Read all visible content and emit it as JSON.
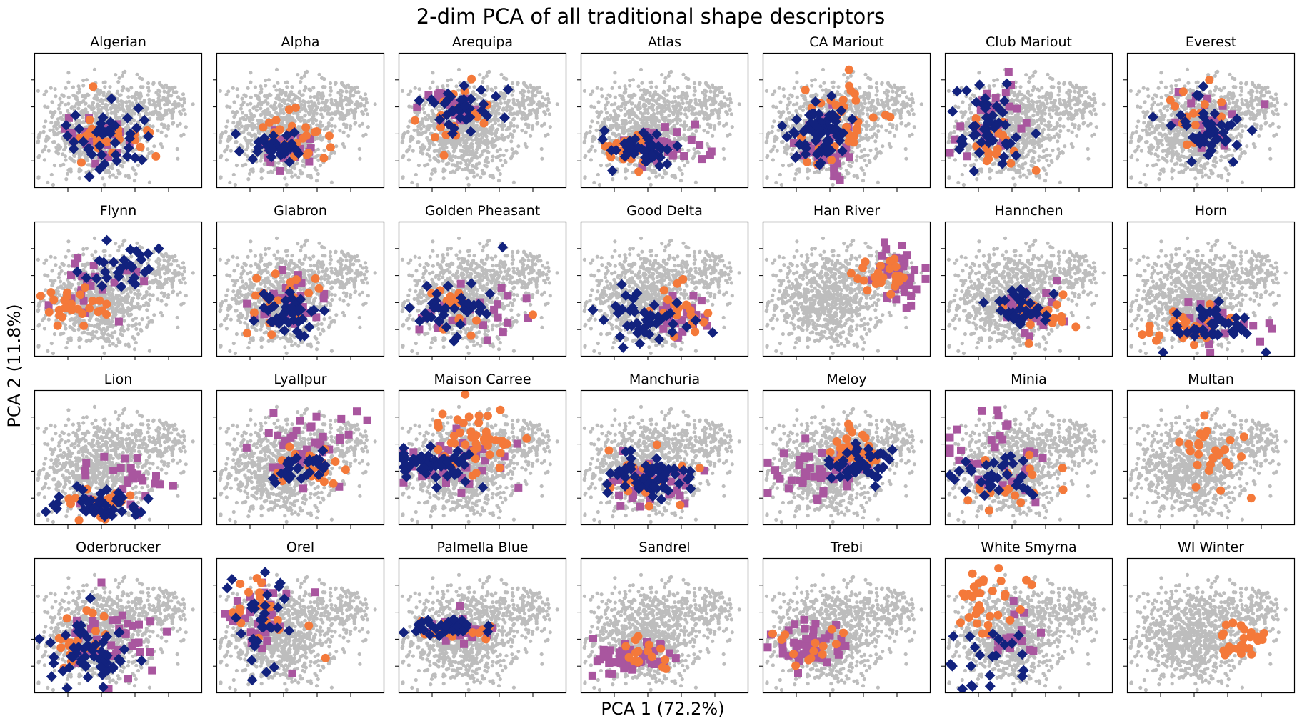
{
  "figure": {
    "title": "2-dim PCA of all traditional shape descriptors",
    "xlabel": "PCA 1 (72.2%)",
    "ylabel": "PCA 2 (11.8%)"
  },
  "colors": {
    "background_points": "#bdbdbd",
    "circle_series": "#f4793a",
    "square_series": "#a9569f",
    "diamond_series": "#12227e",
    "axes": "#000000"
  },
  "axes_shared": {
    "xlim": [
      0,
      100
    ],
    "ylim": [
      0,
      100
    ],
    "ticks": "unlabeled",
    "grid": false,
    "legend": false
  },
  "chart_data": [
    {
      "type": "scatter",
      "title": "Algerian",
      "clusters": [
        {
          "marker": "circle",
          "cx": 45,
          "cy": 38,
          "sx": 13,
          "sy": 8,
          "n": 22,
          "outliers": [
            [
              35,
              75
            ]
          ]
        },
        {
          "marker": "square",
          "cx": 36,
          "cy": 35,
          "sx": 9,
          "sy": 9,
          "n": 24
        },
        {
          "marker": "diamond",
          "cx": 42,
          "cy": 33,
          "sx": 12,
          "sy": 11,
          "n": 40,
          "outliers": [
            [
              46,
              66
            ],
            [
              62,
              59
            ]
          ]
        }
      ]
    },
    {
      "type": "scatter",
      "title": "Alpha",
      "clusters": [
        {
          "marker": "circle",
          "cx": 45,
          "cy": 38,
          "sx": 12,
          "sy": 10,
          "n": 26,
          "outliers": [
            [
              68,
              30
            ],
            [
              64,
              22
            ]
          ]
        },
        {
          "marker": "square",
          "cx": 42,
          "cy": 31,
          "sx": 11,
          "sy": 7,
          "n": 24
        },
        {
          "marker": "diamond",
          "cx": 36,
          "cy": 29,
          "sx": 9,
          "sy": 6,
          "n": 32
        }
      ]
    },
    {
      "type": "scatter",
      "title": "Arequipa",
      "clusters": [
        {
          "marker": "circle",
          "cx": 35,
          "cy": 54,
          "sx": 12,
          "sy": 12,
          "n": 16,
          "outliers": [
            [
              27,
              24
            ]
          ]
        },
        {
          "marker": "square",
          "cx": 30,
          "cy": 60,
          "sx": 8,
          "sy": 9,
          "n": 20
        },
        {
          "marker": "diamond",
          "cx": 38,
          "cy": 56,
          "sx": 11,
          "sy": 11,
          "n": 38
        }
      ]
    },
    {
      "type": "scatter",
      "title": "Atlas",
      "clusters": [
        {
          "marker": "circle",
          "cx": 26,
          "cy": 29,
          "sx": 8,
          "sy": 6,
          "n": 22
        },
        {
          "marker": "square",
          "cx": 47,
          "cy": 32,
          "sx": 13,
          "sy": 8,
          "n": 30,
          "outliers": [
            [
              78,
              27
            ]
          ]
        },
        {
          "marker": "diamond",
          "cx": 36,
          "cy": 29,
          "sx": 11,
          "sy": 6,
          "n": 50
        }
      ]
    },
    {
      "type": "scatter",
      "title": "CA Mariout",
      "clusters": [
        {
          "marker": "circle",
          "cx": 48,
          "cy": 48,
          "sx": 12,
          "sy": 17,
          "n": 36
        },
        {
          "marker": "square",
          "cx": 35,
          "cy": 30,
          "sx": 10,
          "sy": 12,
          "n": 38,
          "outliers": [
            [
              46,
              6
            ]
          ]
        },
        {
          "marker": "diamond",
          "cx": 35,
          "cy": 42,
          "sx": 8,
          "sy": 10,
          "n": 70
        }
      ]
    },
    {
      "type": "scatter",
      "title": "Club Mariout",
      "clusters": [
        {
          "marker": "circle",
          "cx": 30,
          "cy": 35,
          "sx": 10,
          "sy": 12,
          "n": 20
        },
        {
          "marker": "square",
          "cx": 28,
          "cy": 50,
          "sx": 14,
          "sy": 14,
          "n": 30,
          "outliers": [
            [
              38,
              86
            ]
          ]
        },
        {
          "marker": "diamond",
          "cx": 26,
          "cy": 43,
          "sx": 11,
          "sy": 14,
          "n": 48
        }
      ]
    },
    {
      "type": "scatter",
      "title": "Everest",
      "clusters": [
        {
          "marker": "circle",
          "cx": 40,
          "cy": 52,
          "sx": 10,
          "sy": 10,
          "n": 14
        },
        {
          "marker": "square",
          "cx": 48,
          "cy": 50,
          "sx": 10,
          "sy": 10,
          "n": 20,
          "outliers": [
            [
              82,
              62
            ]
          ]
        },
        {
          "marker": "diamond",
          "cx": 48,
          "cy": 40,
          "sx": 10,
          "sy": 12,
          "n": 40
        }
      ]
    },
    {
      "type": "scatter",
      "title": "Flynn",
      "clusters": [
        {
          "marker": "circle",
          "cx": 22,
          "cy": 38,
          "sx": 11,
          "sy": 7,
          "n": 28
        },
        {
          "marker": "square",
          "cx": 36,
          "cy": 50,
          "sx": 12,
          "sy": 10,
          "n": 24
        },
        {
          "marker": "diamond",
          "cx": 52,
          "cy": 65,
          "sx": 12,
          "sy": 9,
          "n": 30
        }
      ]
    },
    {
      "type": "scatter",
      "title": "Glabron",
      "clusters": [
        {
          "marker": "circle",
          "cx": 42,
          "cy": 40,
          "sx": 11,
          "sy": 10,
          "n": 20
        },
        {
          "marker": "square",
          "cx": 46,
          "cy": 40,
          "sx": 12,
          "sy": 11,
          "n": 28
        },
        {
          "marker": "diamond",
          "cx": 42,
          "cy": 34,
          "sx": 10,
          "sy": 10,
          "n": 40
        }
      ]
    },
    {
      "type": "scatter",
      "title": "Golden Pheasant",
      "clusters": [
        {
          "marker": "circle",
          "cx": 34,
          "cy": 40,
          "sx": 10,
          "sy": 9,
          "n": 18,
          "outliers": [
            [
              80,
              31
            ]
          ]
        },
        {
          "marker": "square",
          "cx": 44,
          "cy": 34,
          "sx": 15,
          "sy": 10,
          "n": 24,
          "outliers": [
            [
              65,
              45
            ]
          ]
        },
        {
          "marker": "diamond",
          "cx": 32,
          "cy": 34,
          "sx": 12,
          "sy": 10,
          "n": 36,
          "outliers": [
            [
              62,
              81
            ]
          ]
        }
      ]
    },
    {
      "type": "scatter",
      "title": "Good Delta",
      "clusters": [
        {
          "marker": "circle",
          "cx": 58,
          "cy": 34,
          "sx": 9,
          "sy": 10,
          "n": 20
        },
        {
          "marker": "square",
          "cx": 58,
          "cy": 26,
          "sx": 12,
          "sy": 9,
          "n": 26
        },
        {
          "marker": "diamond",
          "cx": 42,
          "cy": 28,
          "sx": 14,
          "sy": 9,
          "n": 42
        }
      ]
    },
    {
      "type": "scatter",
      "title": "Han River",
      "clusters": [
        {
          "marker": "circle",
          "cx": 72,
          "cy": 58,
          "sx": 10,
          "sy": 8,
          "n": 24
        },
        {
          "marker": "square",
          "cx": 82,
          "cy": 60,
          "sx": 8,
          "sy": 11,
          "n": 40
        }
      ]
    },
    {
      "type": "scatter",
      "title": "Hannchen",
      "clusters": [
        {
          "marker": "circle",
          "cx": 55,
          "cy": 33,
          "sx": 10,
          "sy": 8,
          "n": 20,
          "outliers": [
            [
              78,
              22
            ]
          ]
        },
        {
          "marker": "square",
          "cx": 48,
          "cy": 34,
          "sx": 10,
          "sy": 9,
          "n": 22,
          "outliers": [
            [
              71,
              26
            ]
          ]
        },
        {
          "marker": "diamond",
          "cx": 44,
          "cy": 36,
          "sx": 8,
          "sy": 8,
          "n": 34
        }
      ]
    },
    {
      "type": "scatter",
      "title": "Horn",
      "clusters": [
        {
          "marker": "circle",
          "cx": 38,
          "cy": 22,
          "sx": 13,
          "sy": 6,
          "n": 30
        },
        {
          "marker": "square",
          "cx": 52,
          "cy": 26,
          "sx": 16,
          "sy": 8,
          "n": 26
        },
        {
          "marker": "diamond",
          "cx": 48,
          "cy": 24,
          "sx": 14,
          "sy": 8,
          "n": 44
        }
      ]
    },
    {
      "type": "scatter",
      "title": "Lion",
      "clusters": [
        {
          "marker": "circle",
          "cx": 40,
          "cy": 17,
          "sx": 12,
          "sy": 5,
          "n": 22
        },
        {
          "marker": "square",
          "cx": 55,
          "cy": 30,
          "sx": 14,
          "sy": 11,
          "n": 30
        },
        {
          "marker": "diamond",
          "cx": 38,
          "cy": 15,
          "sx": 13,
          "sy": 5,
          "n": 44
        }
      ]
    },
    {
      "type": "scatter",
      "title": "Lyallpur",
      "clusters": [
        {
          "marker": "circle",
          "cx": 58,
          "cy": 40,
          "sx": 11,
          "sy": 9,
          "n": 20
        },
        {
          "marker": "square",
          "cx": 55,
          "cy": 58,
          "sx": 14,
          "sy": 14,
          "n": 38
        },
        {
          "marker": "diamond",
          "cx": 48,
          "cy": 42,
          "sx": 14,
          "sy": 8,
          "n": 30
        }
      ]
    },
    {
      "type": "scatter",
      "title": "Maison Carree",
      "clusters": [
        {
          "marker": "circle",
          "cx": 42,
          "cy": 62,
          "sx": 15,
          "sy": 12,
          "n": 44
        },
        {
          "marker": "square",
          "cx": 32,
          "cy": 44,
          "sx": 16,
          "sy": 11,
          "n": 36
        },
        {
          "marker": "diamond",
          "cx": 22,
          "cy": 46,
          "sx": 13,
          "sy": 8,
          "n": 54
        }
      ]
    },
    {
      "type": "scatter",
      "title": "Manchuria",
      "clusters": [
        {
          "marker": "circle",
          "cx": 42,
          "cy": 34,
          "sx": 13,
          "sy": 10,
          "n": 24
        },
        {
          "marker": "square",
          "cx": 44,
          "cy": 30,
          "sx": 14,
          "sy": 10,
          "n": 32
        },
        {
          "marker": "diamond",
          "cx": 42,
          "cy": 36,
          "sx": 13,
          "sy": 7,
          "n": 64
        }
      ]
    },
    {
      "type": "scatter",
      "title": "Meloy",
      "clusters": [
        {
          "marker": "circle",
          "cx": 55,
          "cy": 55,
          "sx": 10,
          "sy": 7,
          "n": 30
        },
        {
          "marker": "square",
          "cx": 34,
          "cy": 38,
          "sx": 15,
          "sy": 10,
          "n": 48
        },
        {
          "marker": "diamond",
          "cx": 58,
          "cy": 42,
          "sx": 11,
          "sy": 7,
          "n": 48
        }
      ]
    },
    {
      "type": "scatter",
      "title": "Minia",
      "clusters": [
        {
          "marker": "circle",
          "cx": 42,
          "cy": 30,
          "sx": 12,
          "sy": 9,
          "n": 18
        },
        {
          "marker": "square",
          "cx": 30,
          "cy": 52,
          "sx": 16,
          "sy": 17,
          "n": 34
        },
        {
          "marker": "diamond",
          "cx": 32,
          "cy": 36,
          "sx": 11,
          "sy": 9,
          "n": 34
        }
      ]
    },
    {
      "type": "scatter",
      "title": "Multan",
      "clusters": [
        {
          "marker": "circle",
          "cx": 50,
          "cy": 50,
          "sx": 12,
          "sy": 12,
          "n": 28,
          "outliers": [
            [
              74,
              20
            ]
          ]
        }
      ]
    },
    {
      "type": "scatter",
      "title": "Oderbrucker",
      "clusters": [
        {
          "marker": "circle",
          "cx": 22,
          "cy": 40,
          "sx": 9,
          "sy": 10,
          "n": 20
        },
        {
          "marker": "square",
          "cx": 46,
          "cy": 38,
          "sx": 16,
          "sy": 12,
          "n": 40,
          "outliers": [
            [
              40,
              82
            ]
          ]
        },
        {
          "marker": "diamond",
          "cx": 34,
          "cy": 30,
          "sx": 12,
          "sy": 12,
          "n": 54
        }
      ]
    },
    {
      "type": "scatter",
      "title": "Orel",
      "clusters": [
        {
          "marker": "circle",
          "cx": 25,
          "cy": 62,
          "sx": 8,
          "sy": 14,
          "n": 20,
          "outliers": [
            [
              55,
              50
            ],
            [
              65,
              26
            ]
          ]
        },
        {
          "marker": "square",
          "cx": 28,
          "cy": 50,
          "sx": 10,
          "sy": 14,
          "n": 30
        },
        {
          "marker": "diamond",
          "cx": 28,
          "cy": 56,
          "sx": 11,
          "sy": 18,
          "n": 32
        }
      ]
    },
    {
      "type": "scatter",
      "title": "Palmella Blue",
      "clusters": [
        {
          "marker": "circle",
          "cx": 40,
          "cy": 47,
          "sx": 13,
          "sy": 3,
          "n": 16,
          "outliers": [
            [
              52,
              40
            ]
          ]
        },
        {
          "marker": "square",
          "cx": 32,
          "cy": 48,
          "sx": 12,
          "sy": 5,
          "n": 28
        },
        {
          "marker": "diamond",
          "cx": 30,
          "cy": 48,
          "sx": 12,
          "sy": 4,
          "n": 30
        }
      ]
    },
    {
      "type": "scatter",
      "title": "Sandrel",
      "clusters": [
        {
          "marker": "circle",
          "cx": 34,
          "cy": 30,
          "sx": 9,
          "sy": 7,
          "n": 16
        },
        {
          "marker": "square",
          "cx": 28,
          "cy": 24,
          "sx": 14,
          "sy": 7,
          "n": 48
        }
      ]
    },
    {
      "type": "scatter",
      "title": "Trebi",
      "clusters": [
        {
          "marker": "circle",
          "cx": 28,
          "cy": 35,
          "sx": 9,
          "sy": 8,
          "n": 14
        },
        {
          "marker": "square",
          "cx": 30,
          "cy": 36,
          "sx": 12,
          "sy": 8,
          "n": 50
        }
      ]
    },
    {
      "type": "scatter",
      "title": "White Smyrna",
      "clusters": [
        {
          "marker": "circle",
          "cx": 26,
          "cy": 72,
          "sx": 10,
          "sy": 11,
          "n": 32
        },
        {
          "marker": "square",
          "cx": 36,
          "cy": 47,
          "sx": 10,
          "sy": 14,
          "n": 16
        },
        {
          "marker": "diamond",
          "cx": 24,
          "cy": 28,
          "sx": 13,
          "sy": 14,
          "n": 22
        }
      ]
    },
    {
      "type": "scatter",
      "title": "WI Winter",
      "clusters": [
        {
          "marker": "circle",
          "cx": 68,
          "cy": 40,
          "sx": 7,
          "sy": 7,
          "n": 24,
          "outliers": [
            [
              74,
              45
            ]
          ]
        }
      ]
    }
  ]
}
